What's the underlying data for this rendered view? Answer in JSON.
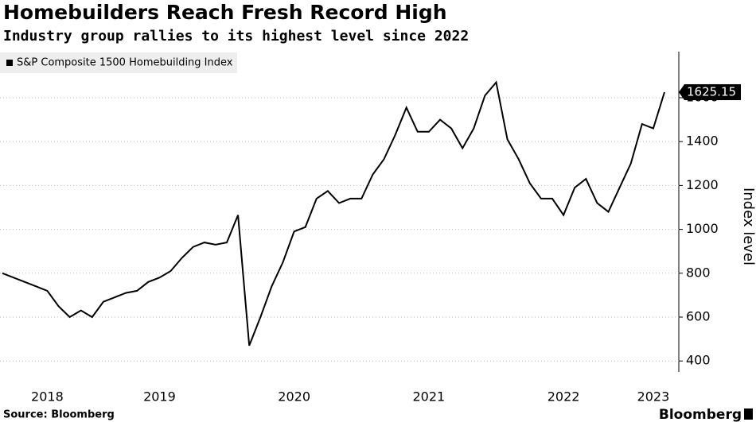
{
  "chart_data": {
    "type": "line",
    "title": "Homebuilders Reach Fresh Record High",
    "subtitle": "Industry group rallies to its highest level since 2022",
    "source": "Source: Bloomberg",
    "brand": "Bloomberg",
    "y_axis_label": "Index level",
    "categories": [
      null,
      null,
      null,
      null,
      "2018",
      null,
      null,
      null,
      null,
      null,
      null,
      null,
      null,
      null,
      "2019",
      null,
      null,
      null,
      null,
      null,
      null,
      null,
      null,
      null,
      null,
      null,
      "2020",
      null,
      null,
      null,
      null,
      null,
      null,
      null,
      null,
      null,
      null,
      null,
      "2021",
      null,
      null,
      null,
      null,
      null,
      null,
      null,
      null,
      null,
      null,
      null,
      "2022",
      null,
      null,
      null,
      null,
      null,
      null,
      null,
      "2023",
      null
    ],
    "series": [
      {
        "name": "S&P Composite 1500 Homebuilding Index",
        "color": "#000000",
        "values": [
          800,
          780,
          760,
          740,
          720,
          650,
          600,
          630,
          600,
          670,
          690,
          710,
          720,
          760,
          780,
          810,
          870,
          920,
          940,
          930,
          940,
          1065,
          470,
          600,
          740,
          850,
          990,
          1010,
          1140,
          1175,
          1120,
          1140,
          1140,
          1250,
          1320,
          1430,
          1555,
          1445,
          1445,
          1500,
          1460,
          1370,
          1460,
          1610,
          1670,
          1410,
          1320,
          1210,
          1140,
          1140,
          1065,
          1190,
          1230,
          1120,
          1080,
          1190,
          1300,
          1480,
          1460,
          1625.15
        ]
      }
    ],
    "ylim": [
      350,
      1810
    ],
    "yticks": [
      400,
      600,
      800,
      1000,
      1200,
      1400,
      1600
    ],
    "grid": true,
    "legend": "top-left"
  }
}
